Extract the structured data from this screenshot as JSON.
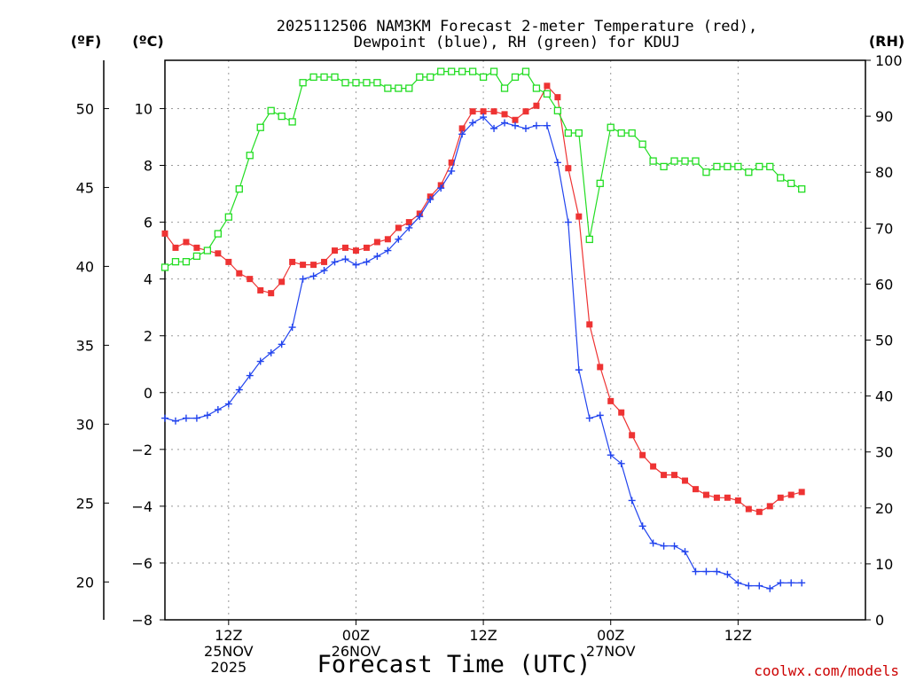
{
  "chart_data": {
    "type": "line",
    "title_line1": "2025112506 NAM3KM Forecast 2-meter Temperature (red),",
    "title_line2": "Dewpoint (blue), RH (green) for KDUJ",
    "xlabel": "Forecast Time (UTC)",
    "credit": "coolwx.com/models",
    "units": {
      "fahrenheit": "(ºF)",
      "celsius": "(ºC)",
      "rh": "(RH)"
    },
    "x_unit": "hours since 2025-11-25 06Z",
    "xlim": [
      0,
      66
    ],
    "ylim_celsius": [
      -8,
      11.7
    ],
    "ylim_rh": [
      0,
      100
    ],
    "celsius_ticks": [
      "10",
      "8",
      "6",
      "4",
      "2",
      "0",
      "−2",
      "−4",
      "−6",
      "−8"
    ],
    "fahrenheit_ticks": [
      "50",
      "45",
      "40",
      "35",
      "30",
      "25",
      "20"
    ],
    "rh_ticks": [
      "100",
      "90",
      "80",
      "70",
      "60",
      "50",
      "40",
      "30",
      "20",
      "10",
      "0"
    ],
    "x_ticks": [
      {
        "x": 6,
        "line1": "12Z",
        "line2": "25NOV",
        "line3": "2025"
      },
      {
        "x": 18,
        "line1": "00Z",
        "line2": "26NOV",
        "line3": ""
      },
      {
        "x": 30,
        "line1": "12Z",
        "line2": "",
        "line3": ""
      },
      {
        "x": 42,
        "line1": "00Z",
        "line2": "27NOV",
        "line3": ""
      },
      {
        "x": 54,
        "line1": "12Z",
        "line2": "",
        "line3": ""
      }
    ],
    "series": [
      {
        "name": "2-meter Temperature",
        "color": "#ee3333",
        "marker": "filled-square",
        "axis": "celsius",
        "points": [
          [
            0,
            5.6
          ],
          [
            1,
            5.1
          ],
          [
            2,
            5.3
          ],
          [
            3,
            5.1
          ],
          [
            4,
            5.0
          ],
          [
            5,
            4.9
          ],
          [
            6,
            4.6
          ],
          [
            7,
            4.2
          ],
          [
            8,
            4.0
          ],
          [
            9,
            3.6
          ],
          [
            10,
            3.5
          ],
          [
            11,
            3.9
          ],
          [
            12,
            4.6
          ],
          [
            13,
            4.5
          ],
          [
            14,
            4.5
          ],
          [
            15,
            4.6
          ],
          [
            16,
            5.0
          ],
          [
            17,
            5.1
          ],
          [
            18,
            5.0
          ],
          [
            19,
            5.1
          ],
          [
            20,
            5.3
          ],
          [
            21,
            5.4
          ],
          [
            22,
            5.8
          ],
          [
            23,
            6.0
          ],
          [
            24,
            6.3
          ],
          [
            25,
            6.9
          ],
          [
            26,
            7.3
          ],
          [
            27,
            8.1
          ],
          [
            28,
            9.3
          ],
          [
            29,
            9.9
          ],
          [
            30,
            9.9
          ],
          [
            31,
            9.9
          ],
          [
            32,
            9.8
          ],
          [
            33,
            9.6
          ],
          [
            34,
            9.9
          ],
          [
            35,
            10.1
          ],
          [
            36,
            10.8
          ],
          [
            37,
            10.4
          ],
          [
            38,
            7.9
          ],
          [
            39,
            6.2
          ],
          [
            40,
            2.4
          ],
          [
            41,
            0.9
          ],
          [
            42,
            -0.3
          ],
          [
            43,
            -0.7
          ],
          [
            44,
            -1.5
          ],
          [
            45,
            -2.2
          ],
          [
            46,
            -2.6
          ],
          [
            47,
            -2.9
          ],
          [
            48,
            -2.9
          ],
          [
            49,
            -3.1
          ],
          [
            50,
            -3.4
          ],
          [
            51,
            -3.6
          ],
          [
            52,
            -3.7
          ],
          [
            53,
            -3.7
          ],
          [
            54,
            -3.8
          ],
          [
            55,
            -4.1
          ],
          [
            56,
            -4.2
          ],
          [
            57,
            -4.0
          ],
          [
            58,
            -3.7
          ],
          [
            59,
            -3.6
          ],
          [
            60,
            -3.5
          ]
        ]
      },
      {
        "name": "Dewpoint",
        "color": "#2244ee",
        "marker": "plus",
        "axis": "celsius",
        "points": [
          [
            0,
            -0.9
          ],
          [
            1,
            -1.0
          ],
          [
            2,
            -0.9
          ],
          [
            3,
            -0.9
          ],
          [
            4,
            -0.8
          ],
          [
            5,
            -0.6
          ],
          [
            6,
            -0.4
          ],
          [
            7,
            0.1
          ],
          [
            8,
            0.6
          ],
          [
            9,
            1.1
          ],
          [
            10,
            1.4
          ],
          [
            11,
            1.7
          ],
          [
            12,
            2.3
          ],
          [
            13,
            4.0
          ],
          [
            14,
            4.1
          ],
          [
            15,
            4.3
          ],
          [
            16,
            4.6
          ],
          [
            17,
            4.7
          ],
          [
            18,
            4.5
          ],
          [
            19,
            4.6
          ],
          [
            20,
            4.8
          ],
          [
            21,
            5.0
          ],
          [
            22,
            5.4
          ],
          [
            23,
            5.8
          ],
          [
            24,
            6.2
          ],
          [
            25,
            6.8
          ],
          [
            26,
            7.2
          ],
          [
            27,
            7.8
          ],
          [
            28,
            9.1
          ],
          [
            29,
            9.5
          ],
          [
            30,
            9.7
          ],
          [
            31,
            9.3
          ],
          [
            32,
            9.5
          ],
          [
            33,
            9.4
          ],
          [
            34,
            9.3
          ],
          [
            35,
            9.4
          ],
          [
            36,
            9.4
          ],
          [
            37,
            8.1
          ],
          [
            38,
            6.0
          ],
          [
            39,
            0.8
          ],
          [
            40,
            -0.9
          ],
          [
            41,
            -0.8
          ],
          [
            42,
            -2.2
          ],
          [
            43,
            -2.5
          ],
          [
            44,
            -3.8
          ],
          [
            45,
            -4.7
          ],
          [
            46,
            -5.3
          ],
          [
            47,
            -5.4
          ],
          [
            48,
            -5.4
          ],
          [
            49,
            -5.6
          ],
          [
            50,
            -6.3
          ],
          [
            51,
            -6.3
          ],
          [
            52,
            -6.3
          ],
          [
            53,
            -6.4
          ],
          [
            54,
            -6.7
          ],
          [
            55,
            -6.8
          ],
          [
            56,
            -6.8
          ],
          [
            57,
            -6.9
          ],
          [
            58,
            -6.7
          ],
          [
            59,
            -6.7
          ],
          [
            60,
            -6.7
          ]
        ]
      },
      {
        "name": "RH",
        "color": "#22dd22",
        "marker": "open-square",
        "axis": "rh",
        "points": [
          [
            0,
            63
          ],
          [
            1,
            64
          ],
          [
            2,
            64
          ],
          [
            3,
            65
          ],
          [
            4,
            66
          ],
          [
            5,
            69
          ],
          [
            6,
            72
          ],
          [
            7,
            77
          ],
          [
            8,
            83
          ],
          [
            9,
            88
          ],
          [
            10,
            91
          ],
          [
            11,
            90
          ],
          [
            12,
            89
          ],
          [
            13,
            96
          ],
          [
            14,
            97
          ],
          [
            15,
            97
          ],
          [
            16,
            97
          ],
          [
            17,
            96
          ],
          [
            18,
            96
          ],
          [
            19,
            96
          ],
          [
            20,
            96
          ],
          [
            21,
            95
          ],
          [
            22,
            95
          ],
          [
            23,
            95
          ],
          [
            24,
            97
          ],
          [
            25,
            97
          ],
          [
            26,
            98
          ],
          [
            27,
            98
          ],
          [
            28,
            98
          ],
          [
            29,
            98
          ],
          [
            30,
            97
          ],
          [
            31,
            98
          ],
          [
            32,
            95
          ],
          [
            33,
            97
          ],
          [
            34,
            98
          ],
          [
            35,
            95
          ],
          [
            36,
            94
          ],
          [
            37,
            91
          ],
          [
            38,
            87
          ],
          [
            39,
            87
          ],
          [
            40,
            68
          ],
          [
            41,
            78
          ],
          [
            42,
            88
          ],
          [
            43,
            87
          ],
          [
            44,
            87
          ],
          [
            45,
            85
          ],
          [
            46,
            82
          ],
          [
            47,
            81
          ],
          [
            48,
            82
          ],
          [
            49,
            82
          ],
          [
            50,
            82
          ],
          [
            51,
            80
          ],
          [
            52,
            81
          ],
          [
            53,
            81
          ],
          [
            54,
            81
          ],
          [
            55,
            80
          ],
          [
            56,
            81
          ],
          [
            57,
            81
          ],
          [
            58,
            79
          ],
          [
            59,
            78
          ],
          [
            60,
            77
          ]
        ]
      }
    ]
  }
}
